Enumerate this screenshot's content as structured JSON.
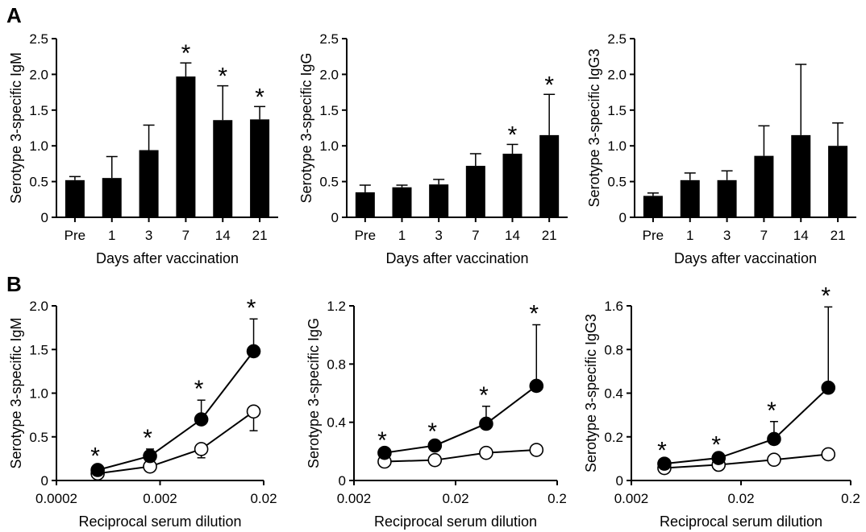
{
  "panel_labels": [
    "A",
    "B"
  ],
  "chart_data": [
    {
      "type": "bar",
      "panel": "A",
      "categories": [
        "Pre",
        "1",
        "3",
        "7",
        "14",
        "21"
      ],
      "values": [
        0.52,
        0.55,
        0.94,
        1.97,
        1.36,
        1.37
      ],
      "errors": [
        0.05,
        0.3,
        0.35,
        0.19,
        0.48,
        0.18
      ],
      "significant": [
        false,
        false,
        false,
        true,
        true,
        true
      ],
      "ylabel": "Serotype 3-specific IgM",
      "xlabel": "Days after vaccination",
      "ylim": [
        0,
        2.5
      ],
      "yticks": [
        "0",
        "0.5",
        "1.0",
        "1.5",
        "2.0",
        "2.5"
      ],
      "significance_marker": "*"
    },
    {
      "type": "bar",
      "panel": "A",
      "categories": [
        "Pre",
        "1",
        "3",
        "7",
        "14",
        "21"
      ],
      "values": [
        0.35,
        0.42,
        0.46,
        0.72,
        0.89,
        1.15
      ],
      "errors": [
        0.1,
        0.03,
        0.07,
        0.17,
        0.13,
        0.57
      ],
      "significant": [
        false,
        false,
        false,
        false,
        true,
        true
      ],
      "ylabel": "Serotype 3-specific IgG",
      "xlabel": "Days after vaccination",
      "ylim": [
        0,
        2.5
      ],
      "yticks": [
        "0",
        "0.5",
        "1.0",
        "1.5",
        "2.0",
        "2.5"
      ],
      "significance_marker": "*"
    },
    {
      "type": "bar",
      "panel": "A",
      "categories": [
        "Pre",
        "1",
        "3",
        "7",
        "14",
        "21"
      ],
      "values": [
        0.3,
        0.52,
        0.52,
        0.86,
        1.15,
        1.0
      ],
      "errors": [
        0.04,
        0.1,
        0.13,
        0.42,
        0.99,
        0.32
      ],
      "significant": [
        false,
        false,
        false,
        false,
        false,
        false
      ],
      "ylabel": "Serotype 3-specific IgG3",
      "xlabel": "Days after vaccination",
      "ylim": [
        0,
        2.5
      ],
      "yticks": [
        "0",
        "0.5",
        "1.0",
        "1.5",
        "2.0",
        "2.5"
      ],
      "significance_marker": "*"
    },
    {
      "type": "line",
      "panel": "B",
      "xscale": "log",
      "xticks": [
        "0.0002",
        "0.002",
        "0.02"
      ],
      "x": [
        0.0005,
        0.0016,
        0.005,
        0.016
      ],
      "series": [
        {
          "marker": "filled-circle",
          "values": [
            0.12,
            0.28,
            0.7,
            1.48
          ],
          "errors": [
            0.03,
            0.08,
            0.22,
            0.37
          ],
          "significant": [
            true,
            true,
            true,
            true
          ]
        },
        {
          "marker": "open-circle",
          "values": [
            0.08,
            0.16,
            0.36,
            0.79
          ],
          "errors": [
            0.02,
            0.03,
            0.1,
            0.22
          ],
          "error_direction": "down",
          "significant": [
            false,
            false,
            false,
            false
          ]
        }
      ],
      "ylabel": "Serotype 3-specific IgM",
      "xlabel": "Reciprocal serum dilution",
      "ylim": [
        0,
        2.0
      ],
      "yticks": [
        "0",
        "0.5",
        "1.0",
        "1.5",
        "2.0"
      ],
      "significance_marker": "*"
    },
    {
      "type": "line",
      "panel": "B",
      "xscale": "log",
      "xticks": [
        "0.002",
        "0.02",
        "0.2"
      ],
      "x": [
        0.004,
        0.0125,
        0.04,
        0.125
      ],
      "series": [
        {
          "marker": "filled-circle",
          "values": [
            0.19,
            0.24,
            0.39,
            0.65
          ],
          "errors": [
            0.01,
            0.02,
            0.12,
            0.42
          ],
          "significant": [
            true,
            true,
            true,
            true
          ]
        },
        {
          "marker": "open-circle",
          "values": [
            0.13,
            0.14,
            0.19,
            0.21
          ],
          "errors": [
            0,
            0,
            0,
            0
          ],
          "significant": [
            false,
            false,
            false,
            false
          ]
        }
      ],
      "ylabel": "Serotype 3-specific IgG",
      "xlabel": "Reciprocal serum dilution",
      "ylim": [
        0,
        1.2
      ],
      "yticks": [
        "0",
        "0.4",
        "0.8",
        "1.2"
      ],
      "significance_marker": "*"
    },
    {
      "type": "line",
      "panel": "B",
      "xscale": "log",
      "xticks": [
        "0.002",
        "0.02",
        "0.2"
      ],
      "x": [
        0.004,
        0.0125,
        0.04,
        0.125
      ],
      "series": [
        {
          "marker": "filled-circle",
          "values": [
            0.077,
            0.103,
            0.19,
            0.45
          ],
          "errors": [
            0.01,
            0.01,
            0.08,
            1.13
          ],
          "significant": [
            true,
            true,
            true,
            true
          ]
        },
        {
          "marker": "open-circle",
          "values": [
            0.057,
            0.072,
            0.095,
            0.12
          ],
          "errors": [
            0,
            0,
            0,
            0
          ],
          "significant": [
            false,
            false,
            false,
            false
          ]
        }
      ],
      "ylabel": "Serotype 3-specific IgG3",
      "xlabel": "Reciprocal serum dilution",
      "ylim": [
        0,
        1.6
      ],
      "ytick_values": [
        0,
        0.2,
        0.4,
        0.8,
        1.6
      ],
      "yticks": [
        "0",
        "0.2",
        "0.4",
        "0.8",
        "1.6"
      ],
      "significance_marker": "*"
    }
  ]
}
